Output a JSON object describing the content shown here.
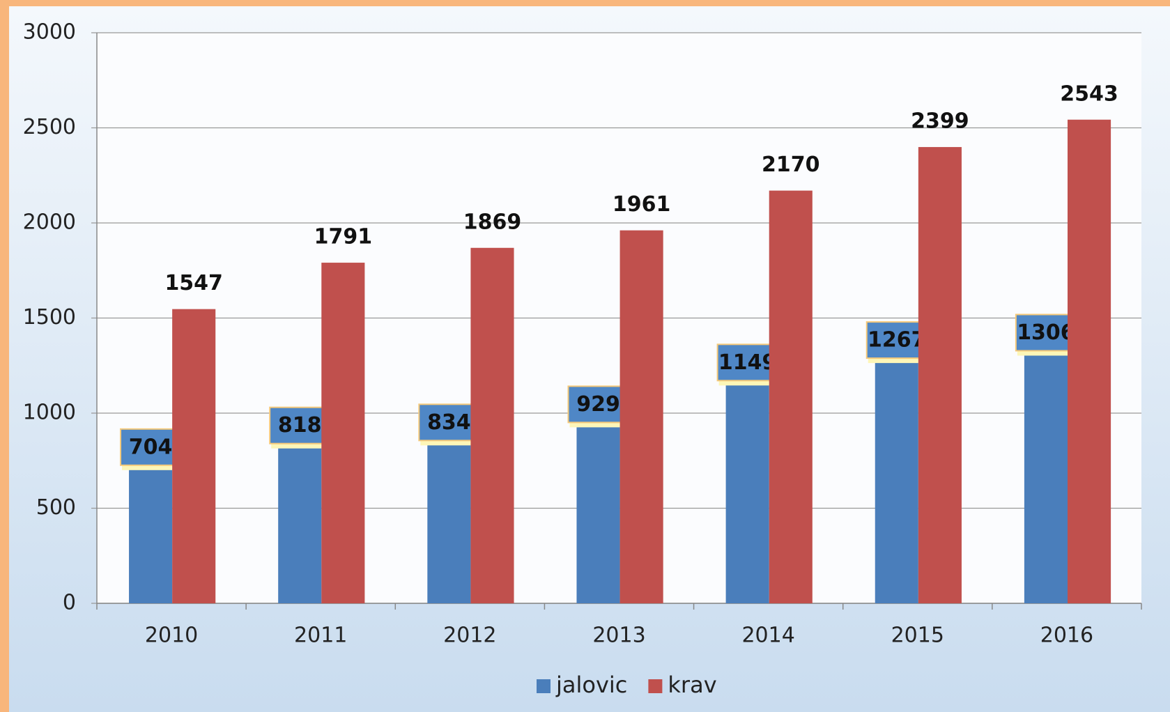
{
  "chart_data": {
    "type": "bar",
    "categories": [
      "2010",
      "2011",
      "2012",
      "2013",
      "2014",
      "2015",
      "2016"
    ],
    "series": [
      {
        "name": "jalovic",
        "color": "#4a7ebb",
        "values": [
          704,
          818,
          834,
          929,
          1149,
          1267,
          1306
        ]
      },
      {
        "name": "krav",
        "color": "#c0504d",
        "values": [
          1547,
          1791,
          1869,
          1961,
          2170,
          2399,
          2543
        ]
      }
    ],
    "ylim": [
      0,
      3000
    ],
    "yticks": [
      0,
      500,
      1000,
      1500,
      2000,
      2500,
      3000
    ],
    "grid": true,
    "legend": "bottom"
  }
}
